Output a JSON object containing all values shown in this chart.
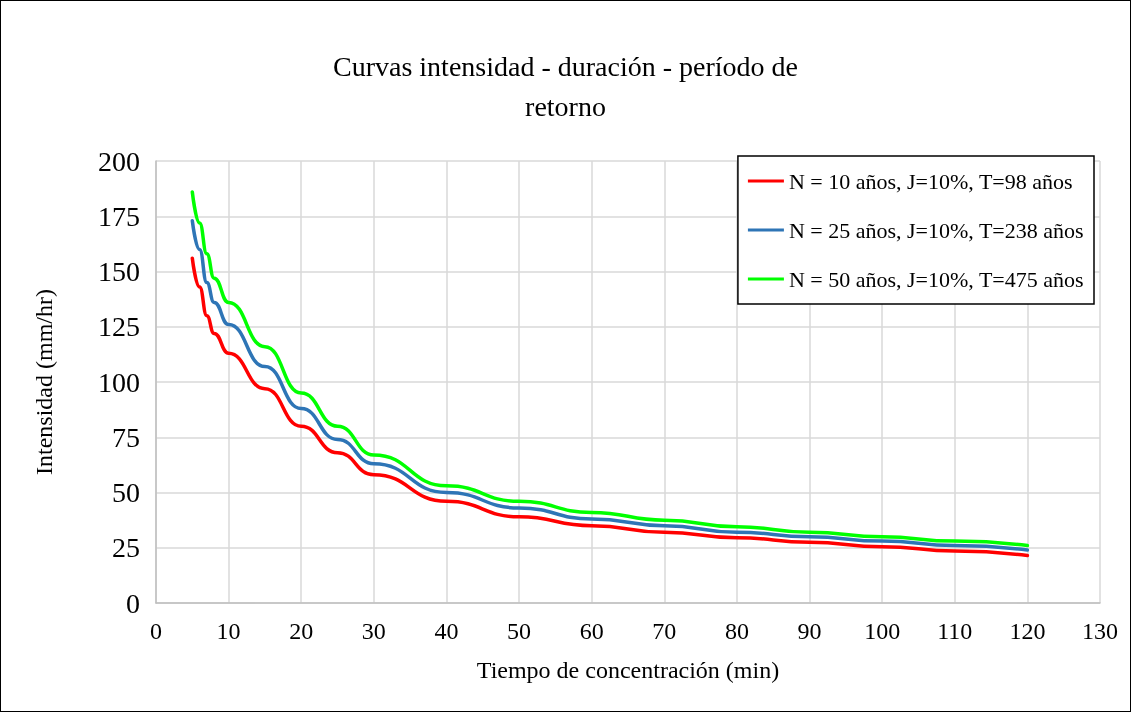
{
  "chart_data": {
    "type": "line",
    "title": "Curvas intensidad - duración - período de\nretorno",
    "xlabel": "Tiempo de concentración (min)",
    "ylabel": "Intensidad (mm/hr)",
    "x": [
      5,
      6,
      7,
      8,
      10,
      15,
      20,
      25,
      30,
      40,
      50,
      60,
      70,
      80,
      90,
      100,
      110,
      120
    ],
    "series": [
      {
        "name": "N = 10 años, J=10%, T=98 años",
        "color": "#ff0000",
        "values": [
          156,
          143,
          130,
          122,
          113,
          97,
          80,
          68,
          58,
          46,
          39,
          35,
          32,
          29.5,
          27.5,
          25.5,
          23.5,
          21.5
        ]
      },
      {
        "name": "N = 25 años, J=10%, T=238 años",
        "color": "#2e75b6",
        "values": [
          173,
          160,
          145,
          136,
          126,
          107,
          88,
          74,
          63,
          50,
          43,
          38,
          35,
          32,
          30,
          28,
          26,
          24
        ]
      },
      {
        "name": "N = 50 años, J=10%, T=475 años",
        "color": "#00ff00",
        "values": [
          186,
          172,
          158,
          147,
          136,
          116,
          95,
          80,
          67,
          53,
          46,
          41,
          37.5,
          34.5,
          32,
          30,
          28,
          26
        ]
      }
    ],
    "xlim": [
      0,
      130
    ],
    "xticks": [
      0,
      10,
      20,
      30,
      40,
      50,
      60,
      70,
      80,
      90,
      100,
      110,
      120,
      130
    ],
    "ylim": [
      0,
      200
    ],
    "yticks": [
      0,
      25,
      50,
      75,
      100,
      125,
      150,
      175,
      200
    ],
    "grid": true,
    "legend": "top right",
    "marker": "none",
    "line_style": "solid"
  }
}
